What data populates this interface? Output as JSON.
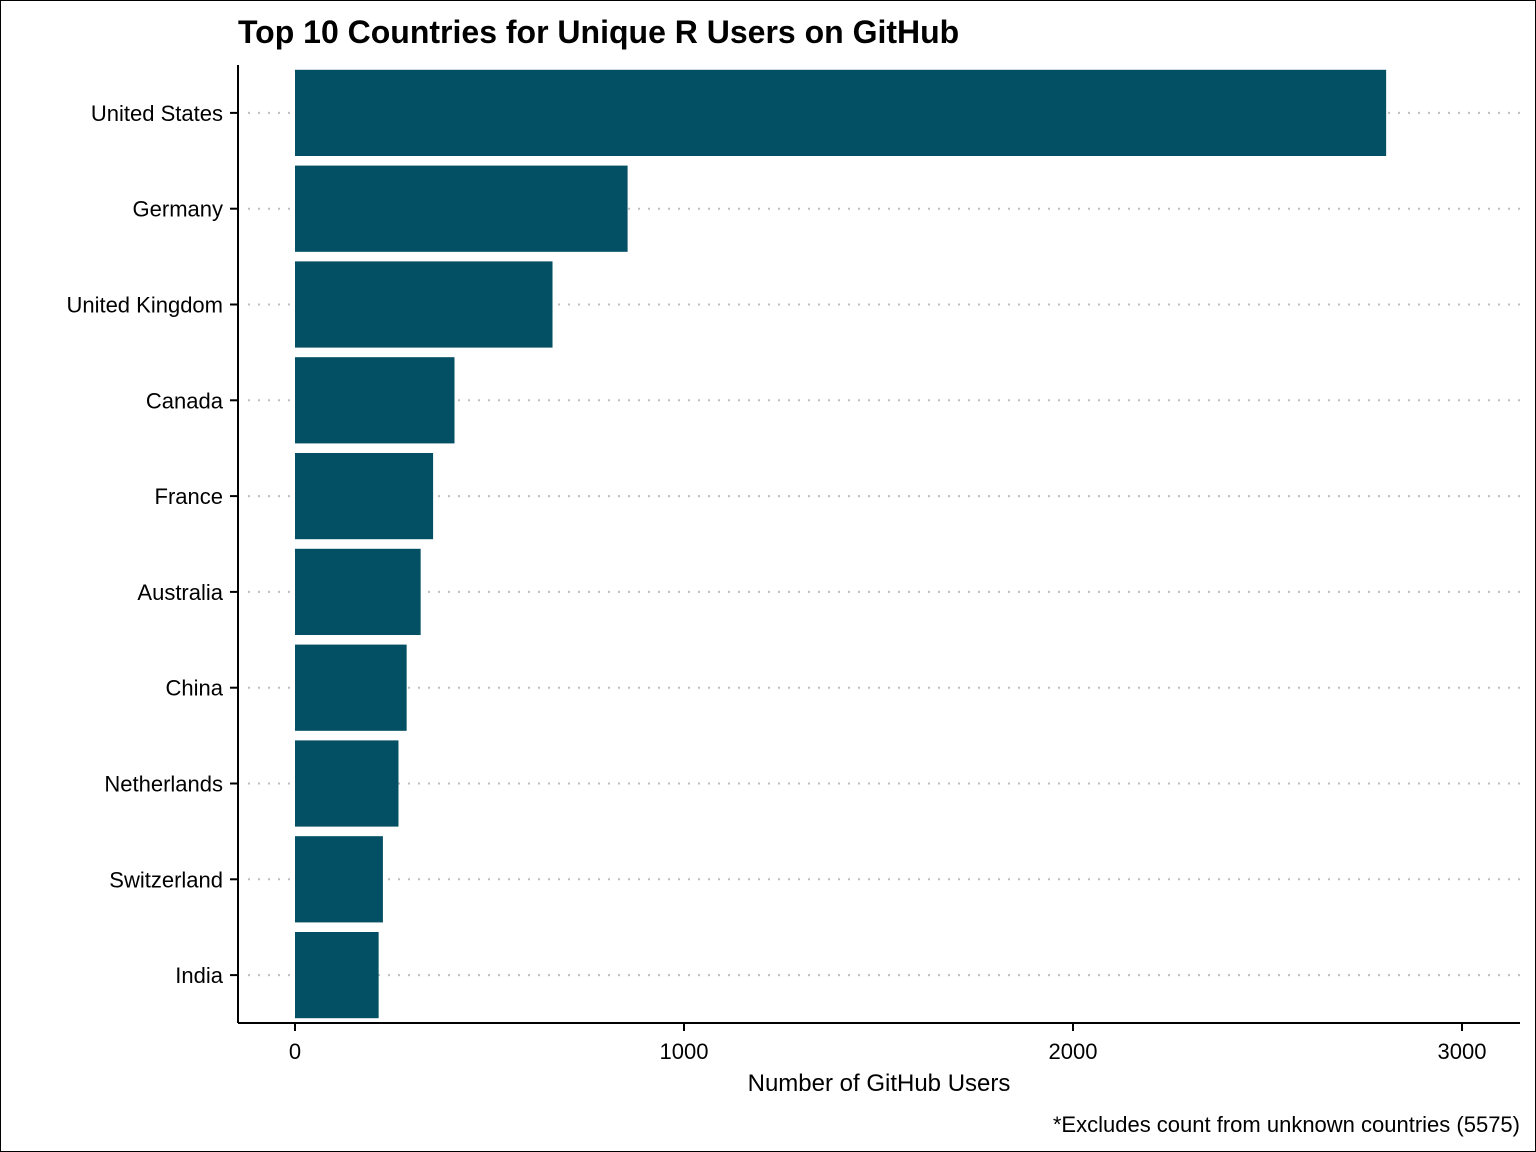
{
  "chart_data": {
    "type": "bar",
    "orientation": "horizontal",
    "title": "Top 10 Countries for Unique R Users on GitHub",
    "xlabel": "Number of GitHub Users",
    "ylabel": "",
    "caption": "*Excludes count from unknown countries (5575)",
    "categories": [
      "United States",
      "Germany",
      "United Kingdom",
      "Canada",
      "France",
      "Australia",
      "China",
      "Netherlands",
      "Switzerland",
      "India"
    ],
    "values": [
      2805,
      855,
      662,
      410,
      355,
      323,
      287,
      266,
      226,
      215
    ],
    "xlim": [
      -150,
      3150
    ],
    "xticks": [
      0,
      1000,
      2000,
      3000
    ],
    "grid": "horizontal dotted at categories",
    "bar_color": "#034f63"
  }
}
